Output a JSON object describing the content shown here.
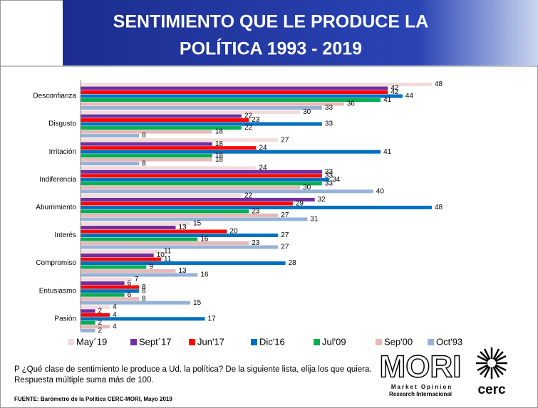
{
  "header": {
    "title_lines": [
      "SENTIMIENTO QUE LE PRODUCE LA",
      "POLÍTICA 1993 - 2019"
    ]
  },
  "chart_data": {
    "type": "bar",
    "orientation": "horizontal",
    "categories": [
      "Desconfianza",
      "Disgusto",
      "Irritación",
      "Indiferencia",
      "Aburrimiento",
      "Interés",
      "Compromiso",
      "Entusiasmo",
      "Pasión"
    ],
    "xlim": [
      0,
      50
    ],
    "series": [
      {
        "name": "May´19",
        "color": "#f2dcdb",
        "values": [
          48,
          30,
          27,
          24,
          22,
          15,
          11,
          7,
          4
        ]
      },
      {
        "name": "Sept´17",
        "color": "#7030a0",
        "values": [
          42,
          22,
          18,
          33,
          32,
          13,
          10,
          6,
          2
        ]
      },
      {
        "name": "Jun'17",
        "color": "#ff0000",
        "values": [
          42,
          23,
          24,
          33,
          29,
          20,
          11,
          8,
          4
        ]
      },
      {
        "name": "Dic'16",
        "color": "#0070c0",
        "values": [
          44,
          33,
          41,
          34,
          48,
          27,
          28,
          8,
          17
        ]
      },
      {
        "name": "Jul'09",
        "color": "#00b050",
        "values": [
          41,
          22,
          18,
          33,
          23,
          16,
          9,
          6,
          2
        ]
      },
      {
        "name": "Sep'00",
        "color": "#e6b9b8",
        "values": [
          36,
          18,
          18,
          30,
          27,
          23,
          13,
          8,
          4
        ]
      },
      {
        "name": "Oct'93",
        "color": "#95b3d7",
        "values": [
          33,
          8,
          8,
          40,
          31,
          27,
          16,
          15,
          2
        ]
      }
    ]
  },
  "question": "P ¿Qué clase de sentimiento le produce a Ud. la política?  De la siguiente lista, elija los que quiera. Respuesta múltiple suma más de 100.",
  "source": "FUENTE: Barómetro de la Política CERC-MORI, Mayo 2019",
  "logos": {
    "mori": "MORI",
    "mori_line1": "Market Opinion",
    "mori_line2": "Research Internacional",
    "cerc": "cerc"
  }
}
